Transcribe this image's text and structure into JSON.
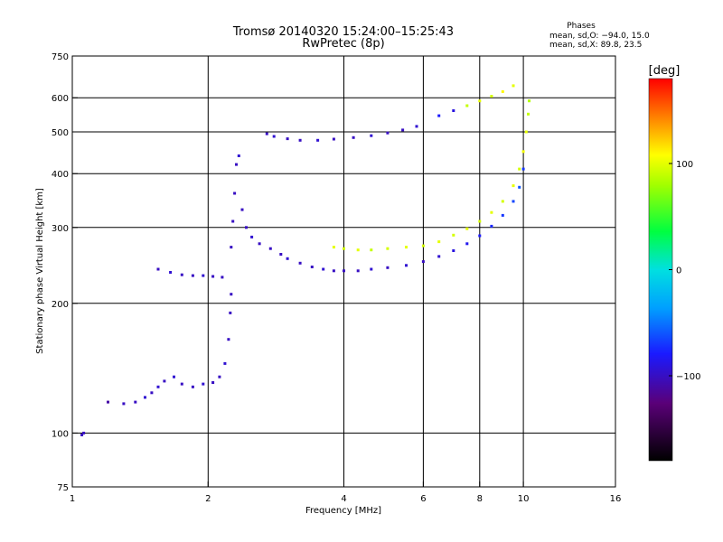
{
  "chart_data": {
    "type": "scatter",
    "title": "Tromsø 20140320 15:24:00–15:25:43",
    "subtitle": "RwPretec (8p)",
    "stats": {
      "heading": "Phases",
      "line_o": "mean, sd,O: −94.0, 15.0",
      "line_x": "mean, sd,X:  89.8, 23.5"
    },
    "xlabel": "Frequency [MHz]",
    "ylabel": "Stationary phase Virtual Height [km]",
    "x_scale": "log",
    "y_scale": "log",
    "xlim": [
      1,
      16
    ],
    "ylim": [
      75,
      750
    ],
    "x_ticks": [
      {
        "v": 1,
        "label": "1"
      },
      {
        "v": 2,
        "label": "2"
      },
      {
        "v": 4,
        "label": "4"
      },
      {
        "v": 6,
        "label": "6"
      },
      {
        "v": 8,
        "label": "8"
      },
      {
        "v": 10,
        "label": "10"
      },
      {
        "v": 16,
        "label": "16"
      }
    ],
    "x_gridlines": [
      2,
      4,
      6,
      8,
      10
    ],
    "y_ticks": [
      {
        "v": 75,
        "label": "75"
      },
      {
        "v": 100,
        "label": "100"
      },
      {
        "v": 200,
        "label": "200"
      },
      {
        "v": 300,
        "label": "300"
      },
      {
        "v": 400,
        "label": "400"
      },
      {
        "v": 500,
        "label": "500"
      },
      {
        "v": 600,
        "label": "600"
      },
      {
        "v": 750,
        "label": "750"
      }
    ],
    "y_gridlines": [
      100,
      200,
      300,
      400,
      500,
      600
    ],
    "grid": true,
    "colorbar": {
      "label": "[deg]",
      "range": [
        -180,
        180
      ],
      "ticks": [
        {
          "v": 100,
          "label": "100"
        },
        {
          "v": 0,
          "label": "0"
        },
        {
          "v": -100,
          "label": "−100"
        }
      ]
    },
    "series": [
      {
        "trace": "o_mode_low",
        "points": [
          [
            1.05,
            99,
            -100
          ],
          [
            1.06,
            100,
            -100
          ],
          [
            1.2,
            118,
            -110
          ],
          [
            1.3,
            117,
            -100
          ],
          [
            1.38,
            118,
            -100
          ],
          [
            1.45,
            121,
            -95
          ],
          [
            1.5,
            124,
            -100
          ],
          [
            1.55,
            128,
            -95
          ],
          [
            1.6,
            132,
            -100
          ],
          [
            1.68,
            135,
            -95
          ],
          [
            1.75,
            130,
            -100
          ],
          [
            1.85,
            128,
            -100
          ],
          [
            1.95,
            130,
            -95
          ],
          [
            2.05,
            131,
            -100
          ],
          [
            2.12,
            135,
            -100
          ],
          [
            2.18,
            145,
            -95
          ],
          [
            2.22,
            165,
            -100
          ],
          [
            2.24,
            190,
            -100
          ],
          [
            2.25,
            210,
            -100
          ]
        ]
      },
      {
        "trace": "o_mode_low_upper",
        "points": [
          [
            1.55,
            240,
            -100
          ],
          [
            1.65,
            236,
            -95
          ],
          [
            1.75,
            233,
            -100
          ],
          [
            1.85,
            232,
            -100
          ],
          [
            1.95,
            232,
            -95
          ],
          [
            2.05,
            231,
            -100
          ],
          [
            2.15,
            230,
            -100
          ]
        ]
      },
      {
        "trace": "o_mode_E_cusp",
        "points": [
          [
            2.25,
            270,
            -100
          ],
          [
            2.27,
            310,
            -100
          ],
          [
            2.29,
            360,
            -100
          ],
          [
            2.31,
            420,
            -100
          ],
          [
            2.34,
            440,
            -95
          ],
          [
            2.38,
            330,
            -100
          ],
          [
            2.43,
            300,
            -100
          ],
          [
            2.5,
            285,
            -95
          ],
          [
            2.6,
            275,
            -100
          ],
          [
            2.75,
            268,
            -100
          ],
          [
            2.9,
            260,
            -100
          ],
          [
            3.0,
            254,
            -95
          ],
          [
            3.2,
            248,
            -100
          ],
          [
            3.4,
            243,
            -100
          ],
          [
            3.6,
            240,
            -95
          ],
          [
            3.8,
            238,
            -100
          ],
          [
            4.0,
            238,
            -100
          ],
          [
            4.3,
            238,
            -100
          ],
          [
            4.6,
            240,
            -95
          ],
          [
            5.0,
            242,
            -100
          ],
          [
            5.5,
            245,
            -95
          ],
          [
            6.0,
            250,
            -100
          ],
          [
            6.5,
            257,
            -95
          ],
          [
            7.0,
            265,
            -90
          ],
          [
            7.5,
            275,
            -85
          ],
          [
            8.0,
            287,
            -80
          ],
          [
            8.5,
            302,
            -75
          ],
          [
            9.0,
            320,
            -70
          ],
          [
            9.5,
            345,
            -65
          ],
          [
            9.8,
            372,
            -60
          ],
          [
            10.0,
            410,
            -70
          ]
        ]
      },
      {
        "trace": "x_mode",
        "points": [
          [
            3.8,
            270,
            100
          ],
          [
            4.0,
            268,
            95
          ],
          [
            4.3,
            266,
            100
          ],
          [
            4.6,
            266,
            90
          ],
          [
            5.0,
            268,
            95
          ],
          [
            5.5,
            270,
            100
          ],
          [
            6.0,
            272,
            95
          ],
          [
            6.5,
            278,
            100
          ],
          [
            7.0,
            288,
            95
          ],
          [
            7.5,
            298,
            100
          ],
          [
            8.0,
            310,
            95
          ],
          [
            8.5,
            325,
            100
          ],
          [
            9.0,
            345,
            95
          ],
          [
            9.5,
            375,
            100
          ],
          [
            9.8,
            410,
            95
          ],
          [
            10.0,
            450,
            105
          ],
          [
            10.15,
            500,
            100
          ],
          [
            10.25,
            550,
            90
          ],
          [
            10.3,
            590,
            85
          ]
        ]
      },
      {
        "trace": "upper_F_trace",
        "points": [
          [
            2.7,
            495,
            -100
          ],
          [
            2.8,
            488,
            -95
          ],
          [
            3.0,
            482,
            -100
          ],
          [
            3.2,
            478,
            -100
          ],
          [
            3.5,
            478,
            -95
          ],
          [
            3.8,
            481,
            -100
          ],
          [
            4.2,
            485,
            -100
          ],
          [
            4.6,
            490,
            -95
          ],
          [
            5.0,
            497,
            -100
          ],
          [
            5.4,
            505,
            -100
          ],
          [
            5.8,
            515,
            -95
          ]
        ]
      },
      {
        "trace": "upper_outlier_trace",
        "points": [
          [
            6.5,
            545,
            -80
          ],
          [
            7.0,
            560,
            -90
          ],
          [
            7.5,
            575,
            90
          ],
          [
            8.0,
            590,
            100
          ],
          [
            8.5,
            605,
            95
          ],
          [
            9.0,
            620,
            110
          ],
          [
            9.5,
            640,
            100
          ]
        ]
      }
    ]
  }
}
